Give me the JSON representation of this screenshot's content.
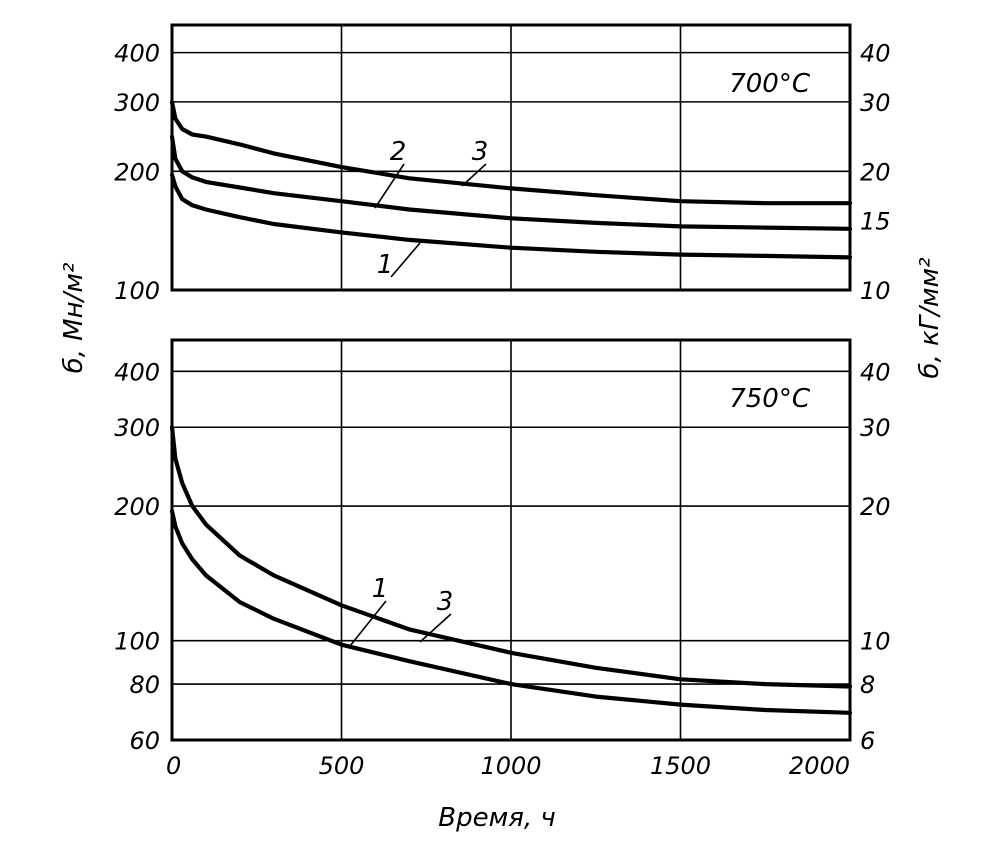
{
  "chart_data": [
    {
      "type": "line",
      "annotation": "700°C",
      "xlabel": "Время, ч",
      "ylabel": "б, Мн/м²",
      "ylabel_right": "б, кГ/мм²",
      "y_scale": "log",
      "xlim": [
        0,
        2000
      ],
      "ylim": [
        100,
        470
      ],
      "grid": true,
      "x_ticks": [
        "0",
        "500",
        "1000",
        "1500",
        "2000"
      ],
      "y_ticks_left": [
        {
          "label": "400",
          "value": 400
        },
        {
          "label": "300",
          "value": 300
        },
        {
          "label": "200",
          "value": 200
        },
        {
          "label": "100",
          "value": 100
        }
      ],
      "y_ticks_right": [
        {
          "label": "40",
          "value": 400
        },
        {
          "label": "30",
          "value": 300
        },
        {
          "label": "20",
          "value": 200
        },
        {
          "label": "15",
          "value": 150
        },
        {
          "label": "10",
          "value": 100
        }
      ],
      "series": [
        {
          "name": "1",
          "x": [
            0,
            10,
            30,
            60,
            100,
            200,
            300,
            500,
            700,
            1000,
            1250,
            1500,
            1750,
            2000
          ],
          "values": [
            196,
            183,
            170,
            164,
            160,
            153,
            147,
            140,
            134,
            128,
            125,
            123,
            122,
            121
          ]
        },
        {
          "name": "2",
          "x": [
            0,
            10,
            30,
            60,
            100,
            200,
            300,
            500,
            700,
            1000,
            1250,
            1500,
            1750,
            2000
          ],
          "values": [
            245,
            215,
            200,
            193,
            188,
            182,
            176,
            168,
            160,
            152,
            148,
            145,
            144,
            143
          ]
        },
        {
          "name": "3",
          "x": [
            0,
            10,
            30,
            60,
            100,
            200,
            300,
            500,
            700,
            1000,
            1250,
            1500,
            1750,
            2000
          ],
          "values": [
            300,
            272,
            256,
            248,
            245,
            234,
            222,
            205,
            192,
            181,
            174,
            168,
            166,
            166
          ]
        }
      ]
    },
    {
      "type": "line",
      "annotation": "750°C",
      "xlabel": "Время, ч",
      "ylabel": "б, Мн/м²",
      "ylabel_right": "б, кГ/мм²",
      "y_scale": "log",
      "xlim": [
        0,
        2000
      ],
      "ylim": [
        60,
        470
      ],
      "grid": true,
      "x_ticks": [
        "0",
        "500",
        "1000",
        "1500",
        "2000"
      ],
      "y_ticks_left": [
        {
          "label": "400",
          "value": 400
        },
        {
          "label": "300",
          "value": 300
        },
        {
          "label": "200",
          "value": 200
        },
        {
          "label": "100",
          "value": 100
        },
        {
          "label": "80",
          "value": 80
        },
        {
          "label": "60",
          "value": 60
        }
      ],
      "y_ticks_right": [
        {
          "label": "40",
          "value": 400
        },
        {
          "label": "30",
          "value": 300
        },
        {
          "label": "20",
          "value": 200
        },
        {
          "label": "10",
          "value": 100
        },
        {
          "label": "8",
          "value": 80
        },
        {
          "label": "6",
          "value": 60
        }
      ],
      "series": [
        {
          "name": "1",
          "x": [
            0,
            10,
            30,
            60,
            100,
            200,
            300,
            500,
            700,
            1000,
            1250,
            1500,
            1750,
            2000
          ],
          "values": [
            195,
            180,
            165,
            152,
            140,
            122,
            112,
            98,
            90,
            80,
            75,
            72,
            70,
            69
          ]
        },
        {
          "name": "3",
          "x": [
            0,
            10,
            30,
            60,
            100,
            200,
            300,
            500,
            700,
            1000,
            1250,
            1500,
            1750,
            2000
          ],
          "values": [
            300,
            255,
            225,
            200,
            182,
            155,
            140,
            120,
            106,
            94,
            87,
            82,
            80,
            79
          ]
        }
      ]
    }
  ]
}
